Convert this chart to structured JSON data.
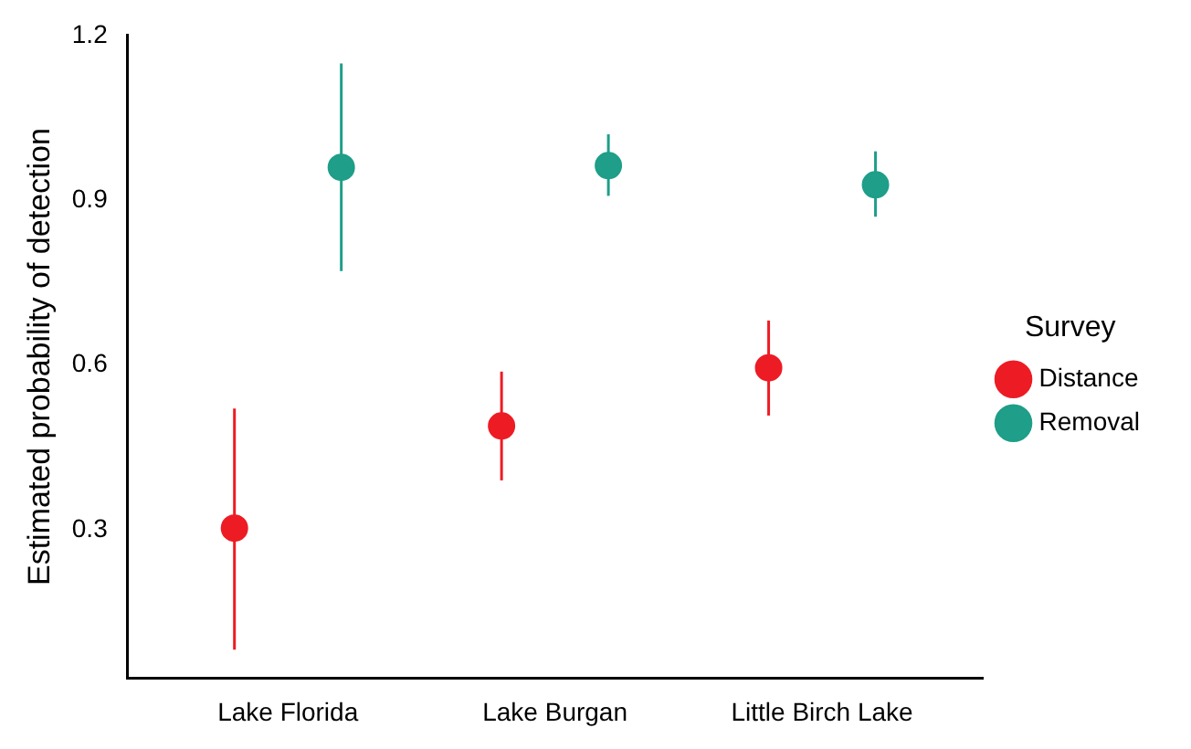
{
  "chart_data": {
    "type": "scatter",
    "ylabel": "Estimated probability of detection",
    "legend_title": "Survey",
    "categories": [
      "Lake Florida",
      "Lake Burgan",
      "Little Birch Lake"
    ],
    "series": [
      {
        "name": "Distance",
        "color": "#ed1c24",
        "values": [
          0.303,
          0.489,
          0.595
        ],
        "errors": [
          [
            0.082,
            0.521
          ],
          [
            0.39,
            0.588
          ],
          [
            0.508,
            0.681
          ]
        ]
      },
      {
        "name": "Removal",
        "color": "#1f9e89",
        "values": [
          0.96,
          0.963,
          0.928
        ],
        "errors": [
          [
            0.771,
            1.149
          ],
          [
            0.908,
            1.02
          ],
          [
            0.87,
            0.989
          ]
        ]
      }
    ],
    "ylim": [
      0.03,
      1.2
    ],
    "yticks": [
      0.3,
      0.6,
      0.9,
      1.2
    ],
    "grid": false,
    "legend": "right",
    "marker": "circle"
  }
}
